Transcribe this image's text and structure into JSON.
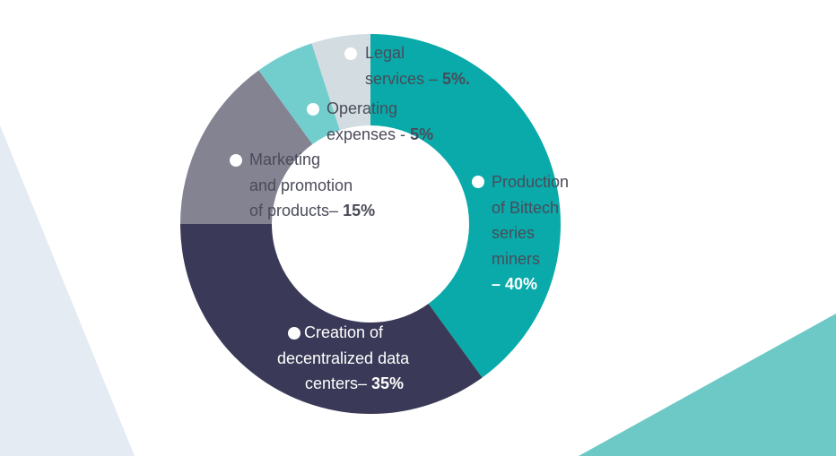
{
  "colors": {
    "background": "#ffffff",
    "deco_left": "#e4ebf2",
    "deco_right": "#6dc9c5",
    "dark_text": "#4a4b5a",
    "light_text": "#ffffff"
  },
  "chart_data": {
    "type": "pie",
    "donut": true,
    "title": "",
    "unit": "%",
    "legend": "labels on slices",
    "slices": [
      {
        "id": "production",
        "lines": [
          "Production",
          "of Bittech",
          "series",
          "miners"
        ],
        "pct_text": "– 40%",
        "value": 40,
        "color": "#09aaa9",
        "text_color": "#4a4b5a"
      },
      {
        "id": "datacenters",
        "lines": [
          "Creation of",
          "decentralized data"
        ],
        "last_line_prefix": "centers– ",
        "pct_text": "35%",
        "value": 35,
        "color": "#3a3a58",
        "text_color": "#ffffff"
      },
      {
        "id": "marketing",
        "lines": [
          "Marketing",
          "and promotion"
        ],
        "last_line_prefix": "of products– ",
        "pct_text": "15%",
        "value": 15,
        "color": "#848392",
        "text_color": "#4a4b5a"
      },
      {
        "id": "operating",
        "lines": [
          "Operating"
        ],
        "last_line_prefix": "expenses - ",
        "pct_text": "5%",
        "value": 5,
        "color": "#72cecd",
        "text_color": "#4a4b5a"
      },
      {
        "id": "legal",
        "lines": [
          "Legal"
        ],
        "last_line_prefix": "services – ",
        "pct_text": "5%.",
        "value": 5,
        "color": "#d3dde1",
        "text_color": "#4a4b5a"
      }
    ]
  }
}
